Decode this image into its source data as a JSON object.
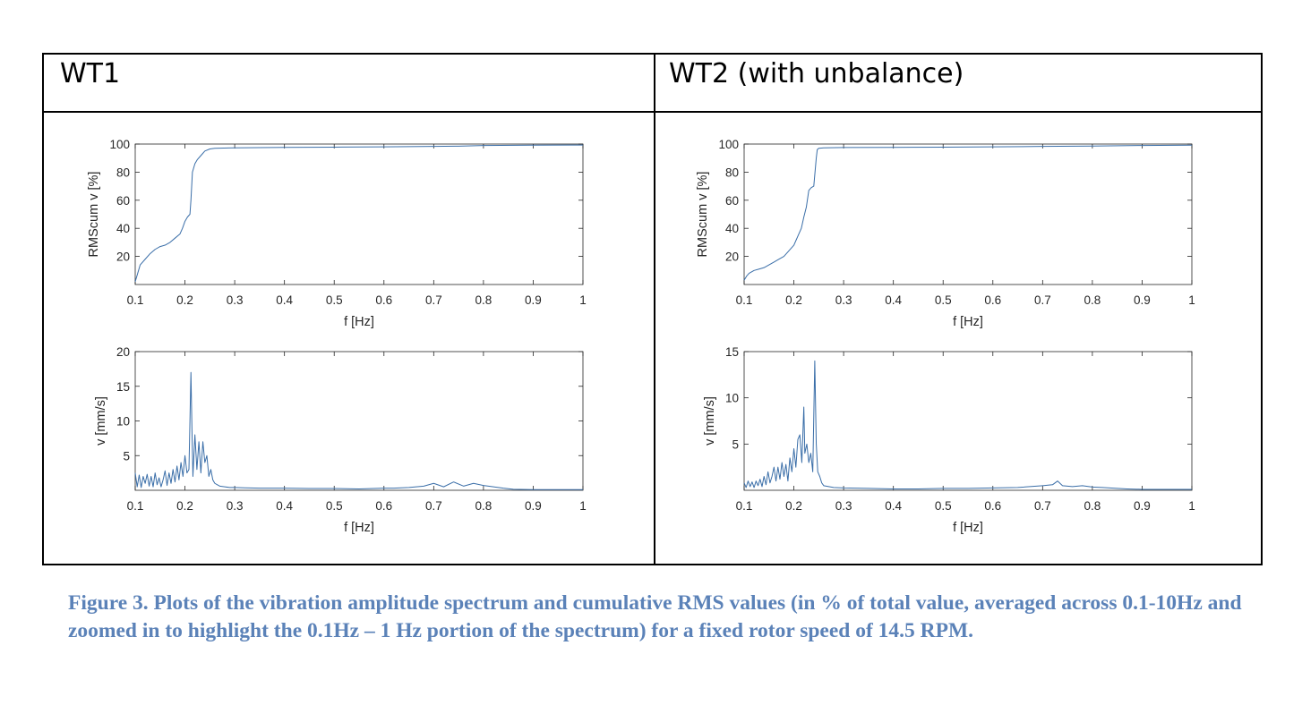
{
  "panels": {
    "left_title": "WT1",
    "right_title": "WT2 (with unbalance)"
  },
  "caption": "Figure 3. Plots of the vibration amplitude spectrum and cumulative RMS values (in % of total value, averaged across 0.1-10Hz and zoomed in to highlight the 0.1Hz – 1 Hz portion of the spectrum) for a fixed rotor speed of 14.5 RPM.",
  "colors": {
    "line": "#3a6ea8",
    "caption": "#5b82b8"
  },
  "chart_data": [
    {
      "id": "wt1-cumulative",
      "type": "line",
      "xlabel": "f [Hz]",
      "ylabel": "RMScum v [%]",
      "xlim": [
        0.1,
        1.0
      ],
      "ylim": [
        0,
        100
      ],
      "xticks": [
        "0.1",
        "0.2",
        "0.3",
        "0.4",
        "0.5",
        "0.6",
        "0.7",
        "0.8",
        "0.9",
        "1"
      ],
      "yticks": [
        "20",
        "40",
        "60",
        "80",
        "100"
      ],
      "x": [
        0.1,
        0.105,
        0.11,
        0.12,
        0.13,
        0.14,
        0.15,
        0.16,
        0.17,
        0.18,
        0.19,
        0.195,
        0.2,
        0.205,
        0.21,
        0.212,
        0.215,
        0.22,
        0.225,
        0.23,
        0.235,
        0.24,
        0.25,
        0.26,
        0.3,
        0.4,
        0.5,
        0.6,
        0.7,
        0.75,
        0.8,
        0.9,
        1.0
      ],
      "y": [
        2,
        8,
        14,
        18,
        22,
        25,
        27,
        28,
        30,
        33,
        36,
        40,
        45,
        48,
        50,
        60,
        80,
        86,
        89,
        91,
        93,
        95,
        96.5,
        97,
        97.3,
        97.6,
        97.8,
        98,
        98.3,
        98.5,
        99,
        99.2,
        99.3
      ]
    },
    {
      "id": "wt1-spectrum",
      "type": "line",
      "xlabel": "f [Hz]",
      "ylabel": "v [mm/s]",
      "xlim": [
        0.1,
        1.0
      ],
      "ylim": [
        0,
        20
      ],
      "xticks": [
        "0.1",
        "0.2",
        "0.3",
        "0.4",
        "0.5",
        "0.6",
        "0.7",
        "0.8",
        "0.9",
        "1"
      ],
      "yticks": [
        "5",
        "10",
        "15",
        "20"
      ],
      "x": [
        0.1,
        0.104,
        0.108,
        0.112,
        0.116,
        0.12,
        0.124,
        0.128,
        0.132,
        0.136,
        0.14,
        0.144,
        0.148,
        0.152,
        0.156,
        0.16,
        0.164,
        0.168,
        0.172,
        0.176,
        0.18,
        0.184,
        0.188,
        0.192,
        0.196,
        0.2,
        0.204,
        0.208,
        0.212,
        0.214,
        0.216,
        0.22,
        0.224,
        0.228,
        0.232,
        0.236,
        0.24,
        0.244,
        0.248,
        0.252,
        0.256,
        0.26,
        0.265,
        0.27,
        0.28,
        0.29,
        0.3,
        0.32,
        0.35,
        0.4,
        0.45,
        0.5,
        0.55,
        0.6,
        0.62,
        0.65,
        0.68,
        0.7,
        0.72,
        0.74,
        0.76,
        0.78,
        0.8,
        0.82,
        0.84,
        0.86,
        0.9,
        0.95,
        1.0
      ],
      "y": [
        2.5,
        0.5,
        2.2,
        0.4,
        2,
        1,
        2.3,
        0.6,
        2,
        0.5,
        2.5,
        0.8,
        1.8,
        0.5,
        1.5,
        2.8,
        0.7,
        2.5,
        1,
        3,
        1.2,
        3.5,
        1.5,
        4,
        2,
        5,
        2.5,
        3,
        17,
        9,
        2,
        8,
        3,
        7,
        2.5,
        7,
        4,
        5,
        2,
        3,
        1.5,
        1,
        0.8,
        0.6,
        0.5,
        0.4,
        0.4,
        0.35,
        0.3,
        0.3,
        0.25,
        0.25,
        0.2,
        0.3,
        0.3,
        0.4,
        0.6,
        1,
        0.5,
        1.2,
        0.6,
        1,
        0.7,
        0.5,
        0.3,
        0.15,
        0.1,
        0.1,
        0.1
      ]
    },
    {
      "id": "wt2-cumulative",
      "type": "line",
      "xlabel": "f [Hz]",
      "ylabel": "RMScum v [%]",
      "xlim": [
        0.1,
        1.0
      ],
      "ylim": [
        0,
        100
      ],
      "xticks": [
        "0.1",
        "0.2",
        "0.3",
        "0.4",
        "0.5",
        "0.6",
        "0.7",
        "0.8",
        "0.9",
        "1"
      ],
      "yticks": [
        "20",
        "40",
        "60",
        "80",
        "100"
      ],
      "x": [
        0.1,
        0.105,
        0.11,
        0.12,
        0.13,
        0.14,
        0.15,
        0.16,
        0.17,
        0.18,
        0.19,
        0.2,
        0.205,
        0.21,
        0.215,
        0.22,
        0.225,
        0.23,
        0.235,
        0.24,
        0.245,
        0.247,
        0.25,
        0.26,
        0.3,
        0.4,
        0.5,
        0.6,
        0.7,
        0.8,
        0.9,
        1.0
      ],
      "y": [
        3,
        6,
        8,
        10,
        11,
        12,
        14,
        16,
        18,
        20,
        24,
        28,
        32,
        36,
        40,
        48,
        55,
        67,
        69,
        70,
        90,
        96,
        97,
        97.3,
        97.5,
        97.6,
        97.8,
        98,
        98.3,
        98.6,
        99,
        99.2
      ]
    },
    {
      "id": "wt2-spectrum",
      "type": "line",
      "xlabel": "f [Hz]",
      "ylabel": "v [mm/s]",
      "xlim": [
        0.1,
        1.0
      ],
      "ylim": [
        0,
        15
      ],
      "xticks": [
        "0.1",
        "0.2",
        "0.3",
        "0.4",
        "0.5",
        "0.6",
        "0.7",
        "0.8",
        "0.9",
        "1"
      ],
      "yticks": [
        "5",
        "10",
        "15"
      ],
      "x": [
        0.1,
        0.104,
        0.108,
        0.112,
        0.116,
        0.12,
        0.124,
        0.128,
        0.132,
        0.136,
        0.14,
        0.144,
        0.148,
        0.152,
        0.156,
        0.16,
        0.164,
        0.168,
        0.172,
        0.176,
        0.18,
        0.184,
        0.188,
        0.192,
        0.196,
        0.2,
        0.204,
        0.208,
        0.212,
        0.216,
        0.22,
        0.222,
        0.226,
        0.23,
        0.234,
        0.238,
        0.242,
        0.245,
        0.248,
        0.252,
        0.256,
        0.26,
        0.27,
        0.28,
        0.3,
        0.35,
        0.4,
        0.45,
        0.5,
        0.55,
        0.6,
        0.65,
        0.7,
        0.72,
        0.73,
        0.74,
        0.76,
        0.78,
        0.8,
        0.82,
        0.85,
        0.87,
        0.9,
        0.95,
        1.0
      ],
      "y": [
        0.8,
        0.3,
        1,
        0.4,
        0.9,
        0.3,
        1,
        0.5,
        1.2,
        0.4,
        1.5,
        0.6,
        2,
        0.8,
        1.5,
        2.5,
        1,
        2.5,
        1.2,
        3,
        1.5,
        2.8,
        1,
        3.5,
        2,
        4.5,
        2.5,
        5.5,
        6,
        3,
        9,
        4,
        5,
        3,
        4,
        2,
        14,
        5,
        2,
        1.5,
        0.8,
        0.5,
        0.4,
        0.3,
        0.25,
        0.2,
        0.15,
        0.15,
        0.2,
        0.2,
        0.25,
        0.3,
        0.5,
        0.6,
        1,
        0.5,
        0.4,
        0.5,
        0.35,
        0.3,
        0.2,
        0.15,
        0.1,
        0.1,
        0.1
      ]
    }
  ]
}
